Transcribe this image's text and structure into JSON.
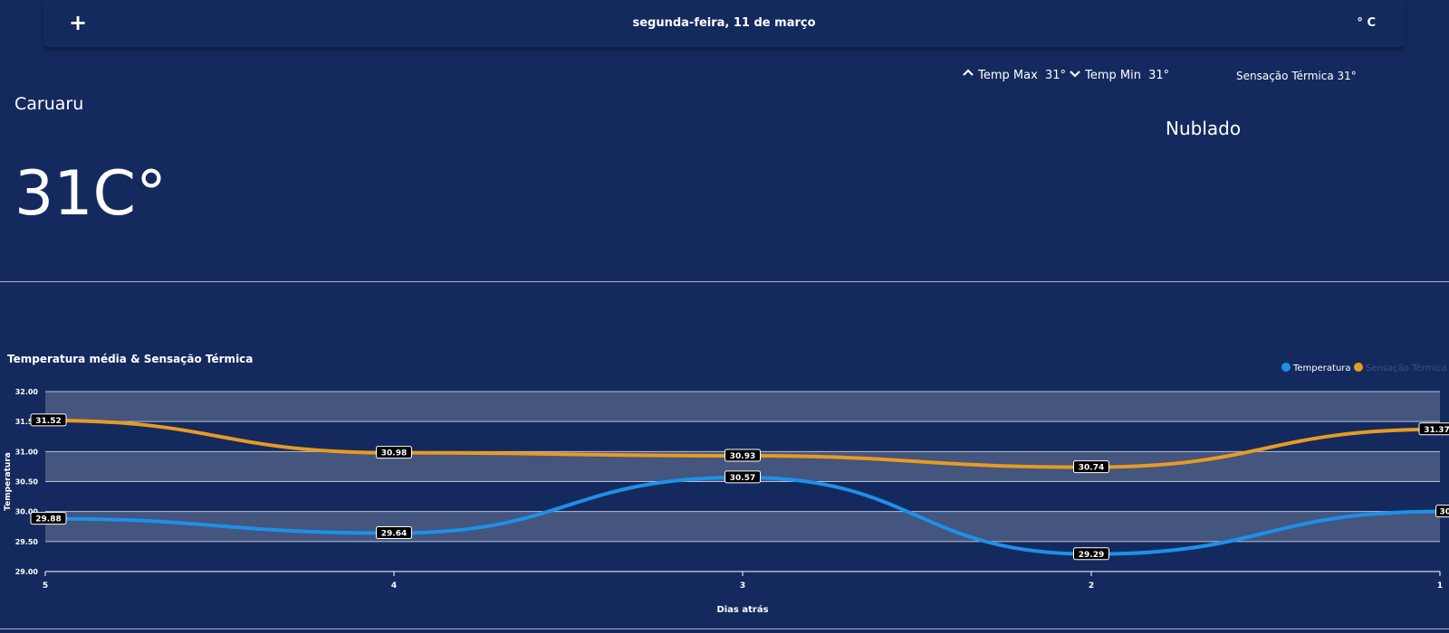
{
  "header": {
    "add_icon": "plus-icon",
    "add_label": "+",
    "date": "segunda-feira, 11 de março",
    "unit_toggle": "° C"
  },
  "summary": {
    "temp_max_label": "Temp Max",
    "temp_max_value": "31°",
    "temp_min_label": "Temp Min",
    "temp_min_value": "31°",
    "feels_like": "Sensação Térmica 31°",
    "up_icon": "chevron-up-icon",
    "down_icon": "chevron-down-icon"
  },
  "location": {
    "city": "Caruaru",
    "condition": "Nublado",
    "temperature": "31C°"
  },
  "chart_data": {
    "type": "line",
    "title": "Temperatura média & Sensação Térmica",
    "xlabel": "Dias atrás",
    "ylabel": "Temperatura",
    "x": [
      "5",
      "4",
      "3",
      "2",
      "1"
    ],
    "ylim": [
      29,
      32
    ],
    "yticks": [
      "29.00",
      "29.50",
      "30.00",
      "30.50",
      "31.00",
      "31.50",
      "32.00"
    ],
    "series": [
      {
        "name": "Temperatura",
        "color": "#1e90e8",
        "values": [
          29.88,
          29.64,
          30.57,
          29.29,
          30
        ],
        "labels": [
          "29.88",
          "29.64",
          "30.57",
          "29.29",
          "30"
        ]
      },
      {
        "name": "Sensação Térmica",
        "color": "#e69b22",
        "values": [
          31.52,
          30.98,
          30.93,
          30.74,
          31.37
        ],
        "labels": [
          "31.52",
          "30.98",
          "30.93",
          "30.74",
          "31.37"
        ]
      }
    ],
    "legend": "top-right",
    "grid": true
  }
}
